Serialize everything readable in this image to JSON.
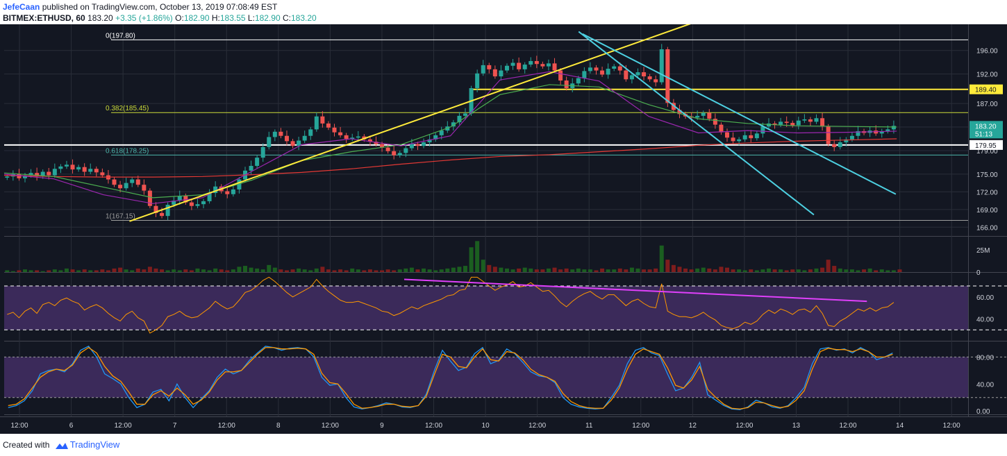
{
  "header": {
    "user": "JefeCaan",
    "published_text": "published on TradingView.com, October 13, 2019 07:08:49 EST",
    "symbol": "BITMEX:ETHUSD, 60",
    "last": "183.20",
    "change": "+3.35 (+1.86%)",
    "open_label": "O:",
    "open": "182.90",
    "high_label": "H:",
    "high": "183.55",
    "low_label": "L:",
    "low": "182.90",
    "close_label": "C:",
    "close": "183.20"
  },
  "footer": {
    "created_with": "Created with",
    "brand": "TradingView"
  },
  "colors": {
    "bg": "#131722",
    "grid": "#2a2e39",
    "text": "#d1d4dc",
    "up": "#26a69a",
    "down": "#ef5350",
    "yellow": "#ffeb3b",
    "cyan": "#4dd0e1",
    "rsi_band": "#3b2a5a",
    "rsi_line": "#ff9800",
    "divergence": "#e040fb",
    "ma_red": "#e53935",
    "ma_green": "#4caf50",
    "ma_purple": "#9c27b0",
    "stoch_k": "#2196f3",
    "stoch_d": "#ff9800",
    "fib_line": "#cddc39"
  },
  "chart_data": {
    "type": "candlestick",
    "x_tick_labels": [
      "12:00",
      "6",
      "12:00",
      "7",
      "12:00",
      "8",
      "12:00",
      "9",
      "12:00",
      "10",
      "12:00",
      "11",
      "12:00",
      "12",
      "12:00",
      "13",
      "12:00",
      "14",
      "12:00"
    ],
    "price_axis": {
      "ticks": [
        "196.00",
        "192.00",
        "187.00",
        "183.00",
        "179.00",
        "175.00",
        "172.00",
        "169.00",
        "166.00"
      ],
      "range": [
        164.5,
        199.5
      ]
    },
    "price_labels": [
      {
        "text": "189.40",
        "value": 189.4,
        "style": "yellow"
      },
      {
        "text": "183.20",
        "value": 183.2,
        "style": "teal"
      },
      {
        "text": "51:13",
        "value": 181.9,
        "style": "teal"
      },
      {
        "text": "179.95",
        "value": 179.95,
        "style": "white"
      }
    ],
    "fibonacci": [
      {
        "label": "0(197.80)",
        "value": 197.8,
        "color": "#ffffff"
      },
      {
        "label": "0.382(185.45)",
        "value": 185.45,
        "color": "#cddc39"
      },
      {
        "label": "0.618(178.25)",
        "value": 178.25,
        "color": "#4db6ac"
      },
      {
        "label": "1(167.15)",
        "value": 167.15,
        "color": "#9e9e9e"
      }
    ],
    "horizontal_levels": [
      {
        "value": 189.4,
        "color": "#ffeb3b"
      },
      {
        "value": 179.95,
        "color": "#ffffff"
      }
    ],
    "candles_close": [
      174.6,
      175.0,
      174.3,
      174.8,
      175.2,
      174.6,
      175.4,
      174.8,
      175.9,
      176.3,
      176.6,
      175.8,
      176.2,
      175.4,
      175.9,
      175.3,
      174.8,
      174.1,
      173.2,
      172.6,
      173.5,
      174.1,
      173.2,
      172.2,
      169.6,
      168.4,
      167.9,
      169.8,
      170.5,
      171.3,
      170.2,
      169.6,
      169.9,
      170.4,
      171.8,
      172.9,
      172.1,
      171.6,
      172.4,
      174.1,
      175.6,
      176.4,
      177.8,
      179.6,
      181.3,
      182.2,
      181.5,
      180.6,
      179.8,
      180.7,
      181.5,
      182.6,
      184.8,
      183.6,
      182.9,
      182.1,
      181.6,
      181.0,
      181.2,
      181.4,
      180.9,
      180.5,
      180.1,
      179.5,
      178.9,
      178.2,
      178.6,
      179.4,
      180.1,
      179.8,
      180.4,
      180.9,
      181.6,
      182.4,
      183.1,
      183.8,
      184.9,
      185.3,
      189.6,
      192.1,
      193.5,
      192.8,
      191.6,
      192.6,
      193.4,
      193.9,
      192.8,
      193.6,
      194.2,
      193.7,
      193.3,
      193.8,
      192.6,
      190.9,
      189.6,
      190.4,
      191.3,
      192.5,
      193.1,
      192.6,
      191.9,
      192.9,
      193.3,
      192.6,
      191.1,
      191.8,
      192.3,
      191.6,
      191.1,
      190.6,
      196.2,
      187.1,
      185.9,
      185.2,
      184.8,
      184.6,
      184.9,
      185.4,
      184.4,
      183.4,
      182.1,
      181.2,
      180.6,
      180.9,
      181.6,
      181.1,
      181.9,
      183.1,
      183.6,
      183.4,
      183.9,
      183.7,
      183.3,
      184.1,
      184.3,
      183.9,
      184.5,
      183.1,
      180.1,
      179.6,
      180.4,
      180.9,
      181.5,
      182.3,
      182.0,
      182.4,
      181.9,
      182.3,
      182.6,
      183.2
    ],
    "moving_averages": [
      {
        "color": "#e53935",
        "values": [
          174.8,
          174.6,
          174.5,
          174.5,
          174.6,
          174.9,
          175.3,
          175.9,
          176.7,
          177.4,
          178.0,
          178.3,
          178.8,
          179.3,
          179.9,
          180.3,
          180.6,
          180.8,
          181.0
        ]
      },
      {
        "color": "#4caf50",
        "values": [
          175.2,
          174.6,
          172.8,
          171.0,
          171.5,
          174.0,
          177.3,
          178.8,
          180.0,
          183.0,
          188.5,
          190.2,
          189.8,
          186.8,
          184.4,
          183.6,
          183.2,
          183.1,
          183.0
        ]
      },
      {
        "color": "#9c27b0",
        "values": [
          175.0,
          174.2,
          171.5,
          170.0,
          171.0,
          175.5,
          180.0,
          181.0,
          179.8,
          181.5,
          191.0,
          192.4,
          190.8,
          184.8,
          182.0,
          182.4,
          182.0,
          182.1,
          182.3
        ]
      }
    ],
    "trendlines": [
      {
        "color": "#ffeb3b",
        "points": [
          [
            0.13,
            167.0
          ],
          [
            0.72,
            201.0
          ]
        ]
      },
      {
        "color": "#4dd0e1",
        "points": [
          [
            0.596,
            199.2
          ],
          [
            0.84,
            168.1
          ]
        ]
      },
      {
        "color": "#4dd0e1",
        "points": [
          [
            0.6,
            198.8
          ],
          [
            0.925,
            171.6
          ]
        ]
      }
    ],
    "volume_panel": {
      "tick_labels": [
        "25M",
        "0"
      ],
      "range": [
        0,
        40
      ],
      "volumes": [
        2,
        1,
        2,
        3,
        2,
        2,
        1,
        2,
        3,
        2,
        4,
        3,
        2,
        3,
        2,
        2,
        3,
        2,
        4,
        5,
        3,
        2,
        4,
        3,
        6,
        4,
        3,
        2,
        3,
        2,
        3,
        2,
        4,
        3,
        2,
        4,
        3,
        2,
        3,
        6,
        7,
        5,
        4,
        3,
        8,
        5,
        3,
        2,
        3,
        4,
        3,
        2,
        4,
        6,
        3,
        2,
        3,
        2,
        4,
        3,
        2,
        3,
        2,
        2,
        3,
        2,
        3,
        4,
        5,
        3,
        4,
        3,
        2,
        3,
        4,
        5,
        6,
        7,
        28,
        35,
        14,
        8,
        6,
        5,
        4,
        3,
        4,
        5,
        4,
        3,
        3,
        4,
        5,
        3,
        4,
        3,
        4,
        3,
        3,
        2,
        4,
        3,
        3,
        4,
        3,
        5,
        4,
        3,
        3,
        4,
        30,
        14,
        8,
        6,
        4,
        3,
        4,
        5,
        4,
        3,
        6,
        5,
        3,
        3,
        2,
        3,
        2,
        3,
        4,
        3,
        3,
        2,
        3,
        3,
        2,
        3,
        4,
        5,
        14,
        7,
        4,
        3,
        3,
        2,
        3,
        4,
        2,
        3,
        2,
        2,
        3
      ]
    },
    "rsi_panel": {
      "tick_labels": [
        "60.00",
        "40.00"
      ],
      "range": [
        20,
        82
      ],
      "band": [
        30,
        70
      ],
      "values": [
        44,
        46,
        41,
        47,
        50,
        45,
        53,
        55,
        52,
        57,
        59,
        56,
        54,
        48,
        51,
        53,
        50,
        45,
        41,
        38,
        44,
        47,
        41,
        38,
        27,
        30,
        34,
        42,
        44,
        47,
        43,
        41,
        42,
        46,
        50,
        56,
        52,
        49,
        51,
        57,
        64,
        66,
        70,
        75,
        78,
        74,
        69,
        64,
        60,
        63,
        66,
        69,
        76,
        70,
        65,
        61,
        57,
        55,
        55,
        56,
        54,
        52,
        50,
        47,
        46,
        43,
        45,
        48,
        51,
        49,
        52,
        54,
        56,
        58,
        61,
        62,
        66,
        67,
        78,
        78,
        74,
        70,
        66,
        69,
        71,
        74,
        69,
        70,
        73,
        69,
        65,
        66,
        61,
        55,
        51,
        56,
        60,
        63,
        65,
        61,
        58,
        62,
        62,
        57,
        52,
        56,
        58,
        54,
        51,
        50,
        72,
        47,
        44,
        42,
        42,
        41,
        43,
        46,
        42,
        39,
        34,
        32,
        31,
        33,
        37,
        35,
        38,
        44,
        48,
        45,
        49,
        47,
        44,
        48,
        49,
        46,
        52,
        45,
        34,
        33,
        38,
        41,
        45,
        49,
        47,
        50,
        47,
        50,
        51,
        55
      ],
      "divergence": [
        [
          0.415,
          76.0
        ],
        [
          0.895,
          56.0
        ]
      ]
    },
    "stoch_panel": {
      "tick_labels": [
        "80.00",
        "40.00",
        "0.00"
      ],
      "range": [
        -5,
        103
      ],
      "band": [
        20,
        80
      ],
      "k": [
        5,
        8,
        15,
        30,
        55,
        60,
        62,
        58,
        70,
        90,
        96,
        80,
        55,
        48,
        40,
        20,
        5,
        10,
        28,
        32,
        15,
        40,
        20,
        5,
        18,
        30,
        50,
        62,
        55,
        60,
        75,
        86,
        96,
        94,
        90,
        93,
        94,
        92,
        80,
        50,
        38,
        40,
        20,
        6,
        3,
        5,
        8,
        12,
        10,
        6,
        5,
        8,
        25,
        60,
        90,
        74,
        60,
        65,
        85,
        94,
        70,
        75,
        92,
        85,
        72,
        58,
        52,
        50,
        42,
        20,
        10,
        6,
        4,
        3,
        4,
        20,
        38,
        70,
        90,
        94,
        86,
        82,
        55,
        30,
        34,
        50,
        72,
        24,
        16,
        8,
        3,
        2,
        6,
        16,
        12,
        6,
        4,
        8,
        20,
        35,
        70,
        92,
        94,
        90,
        92,
        86,
        94,
        88,
        76,
        80,
        86
      ],
      "d": [
        8,
        10,
        18,
        34,
        50,
        58,
        62,
        60,
        68,
        86,
        94,
        86,
        66,
        52,
        44,
        28,
        10,
        10,
        24,
        30,
        22,
        34,
        24,
        10,
        16,
        28,
        46,
        58,
        58,
        60,
        72,
        84,
        94,
        94,
        92,
        92,
        93,
        92,
        84,
        56,
        42,
        40,
        26,
        10,
        4,
        5,
        7,
        10,
        10,
        7,
        6,
        8,
        22,
        54,
        84,
        80,
        66,
        64,
        80,
        92,
        76,
        74,
        88,
        86,
        76,
        62,
        54,
        50,
        44,
        26,
        14,
        8,
        5,
        4,
        4,
        16,
        34,
        62,
        84,
        92,
        88,
        84,
        64,
        38,
        34,
        46,
        66,
        32,
        20,
        10,
        4,
        3,
        5,
        13,
        12,
        8,
        5,
        7,
        16,
        30,
        62,
        88,
        93,
        91,
        91,
        88,
        92,
        88,
        80,
        80,
        84
      ]
    }
  }
}
